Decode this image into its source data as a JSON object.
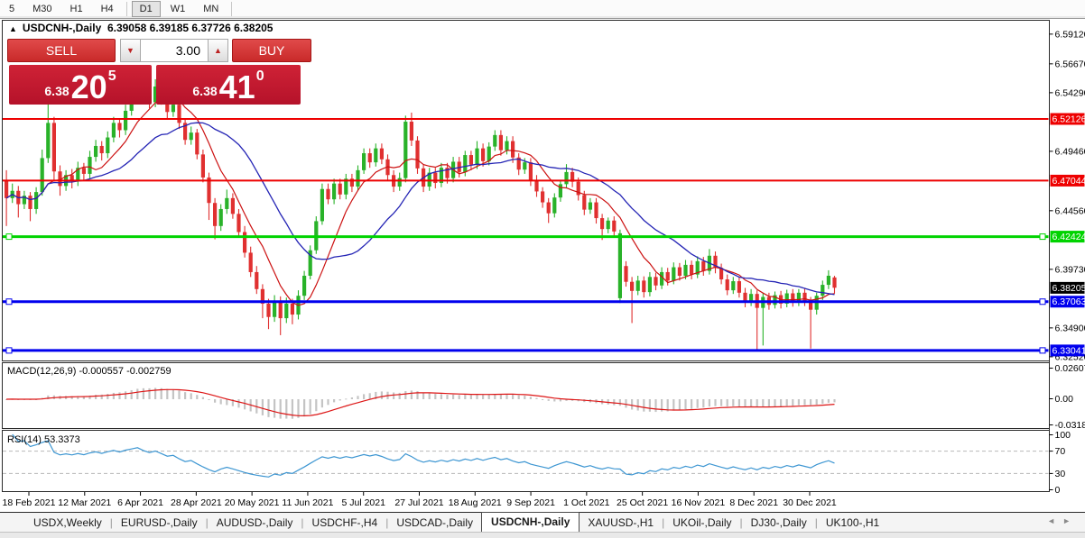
{
  "toolbar": {
    "timeframes": [
      "5",
      "M30",
      "H1",
      "H4",
      "D1",
      "W1",
      "MN"
    ],
    "active": "D1"
  },
  "chart": {
    "title_symbol": "USDCNH-,Daily",
    "title_ohlc": "6.39058 6.39185 6.37726 6.38205"
  },
  "trade_panel": {
    "sell_label": "SELL",
    "buy_label": "BUY",
    "volume": "3.00",
    "sell_quote": {
      "small": "6.38",
      "big": "20",
      "sup": "5"
    },
    "buy_quote": {
      "small": "6.38",
      "big": "41",
      "sup": "0"
    }
  },
  "macd": {
    "label": "MACD(12,26,9) -0.000557 -0.002759",
    "axis": [
      "0.02607",
      "0.00",
      "-0.03187"
    ]
  },
  "rsi": {
    "label": "RSI(14) 53.3373",
    "axis": [
      "100",
      "70",
      "30",
      "0"
    ],
    "levels": [
      70,
      30
    ]
  },
  "tabs": {
    "items": [
      "USDX,Weekly",
      "EURUSD-,Daily",
      "AUDUSD-,Daily",
      "USDCHF-,H4",
      "USDCAD-,Daily",
      "USDCNH-,Daily",
      "XAUUSD-,H1",
      "UKOil-,Daily",
      "DJ30-,Daily",
      "UK100-,H1"
    ],
    "active": "USDCNH-,Daily",
    "scroll_left": "◄",
    "scroll_right": "►"
  },
  "colors": {
    "bull": "#29b229",
    "bear": "#e03030",
    "ma_fast": "#cc1111",
    "ma_slow": "#2525b5",
    "macd_hist": "#c4c4c4",
    "macd_signal": "#dd1616",
    "rsi_line": "#3d96d2",
    "rsi_level": "#b8b8b8",
    "frame": "#2a2a2a",
    "axis_text": "#000000",
    "badge_current": "#000000"
  },
  "chart_data": {
    "type": "candlestick",
    "symbol": "USDCNH-",
    "period": "Daily",
    "y_ticks": [
      "6.59120",
      "6.56670",
      "6.54290",
      "6.49460",
      "6.44560",
      "6.39730",
      "6.34900",
      "6.32520"
    ],
    "x_labels": [
      "18 Feb 2021",
      "12 Mar 2021",
      "6 Apr 2021",
      "28 Apr 2021",
      "20 May 2021",
      "11 Jun 2021",
      "5 Jul 2021",
      "27 Jul 2021",
      "18 Aug 2021",
      "9 Sep 2021",
      "1 Oct 2021",
      "25 Oct 2021",
      "16 Nov 2021",
      "8 Dec 2021",
      "30 Dec 2021"
    ],
    "levels": [
      {
        "price": 6.52126,
        "label": "6.52126",
        "color": "#ee0000",
        "width": 2,
        "handles": false
      },
      {
        "price": 6.47044,
        "label": "6.47044",
        "color": "#ee0000",
        "width": 2,
        "handles": false
      },
      {
        "price": 6.42424,
        "label": "6.42424",
        "color": "#00d300",
        "width": 3,
        "handles": true
      },
      {
        "price": 6.37063,
        "label": "6.37063",
        "color": "#0000ee",
        "width": 3,
        "handles": true
      },
      {
        "price": 6.33041,
        "label": "6.33041",
        "color": "#0000ee",
        "width": 3,
        "handles": true
      }
    ],
    "current_price": {
      "price": 6.38205,
      "label": "6.38205"
    },
    "last_candle_ohlc": {
      "open": 6.39058,
      "high": 6.39185,
      "low": 6.37726,
      "close": 6.38205
    },
    "indicators": {
      "ma_fast_period": 8,
      "ma_slow_period": 20,
      "macd": [
        12,
        26,
        9
      ],
      "rsi": 14
    },
    "macd_axis_values": [
      0.02607,
      0.0,
      -0.03187
    ],
    "rsi_axis_values": [
      100,
      70,
      30,
      0
    ],
    "candles": [
      [
        6.47,
        6.479,
        6.433,
        6.456
      ],
      [
        6.456,
        6.468,
        6.452,
        6.462
      ],
      [
        6.462,
        6.466,
        6.44,
        6.451
      ],
      [
        6.451,
        6.462,
        6.447,
        6.458
      ],
      [
        6.458,
        6.461,
        6.437,
        6.447
      ],
      [
        6.447,
        6.465,
        6.443,
        6.461
      ],
      [
        6.461,
        6.496,
        6.458,
        6.489
      ],
      [
        6.489,
        6.545,
        6.485,
        6.518
      ],
      [
        6.518,
        6.523,
        6.47,
        6.478
      ],
      [
        6.478,
        6.483,
        6.458,
        6.466
      ],
      [
        6.466,
        6.479,
        6.462,
        6.475
      ],
      [
        6.475,
        6.48,
        6.464,
        6.47
      ],
      [
        6.47,
        6.486,
        6.466,
        6.481
      ],
      [
        6.481,
        6.485,
        6.47,
        6.476
      ],
      [
        6.476,
        6.495,
        6.472,
        6.49
      ],
      [
        6.49,
        6.504,
        6.486,
        6.499
      ],
      [
        6.499,
        6.503,
        6.487,
        6.493
      ],
      [
        6.493,
        6.511,
        6.489,
        6.506
      ],
      [
        6.506,
        6.523,
        6.502,
        6.518
      ],
      [
        6.518,
        6.522,
        6.506,
        6.512
      ],
      [
        6.512,
        6.533,
        6.508,
        6.528
      ],
      [
        6.528,
        6.545,
        6.524,
        6.54
      ],
      [
        6.54,
        6.556,
        6.536,
        6.553
      ],
      [
        6.553,
        6.5555,
        6.538,
        6.543
      ],
      [
        6.543,
        6.548,
        6.53,
        6.535
      ],
      [
        6.535,
        6.554,
        6.531,
        6.548
      ],
      [
        6.548,
        6.552,
        6.533,
        6.538
      ],
      [
        6.538,
        6.542,
        6.521,
        6.527
      ],
      [
        6.527,
        6.536,
        6.523,
        6.533
      ],
      [
        6.533,
        6.537,
        6.513,
        6.518
      ],
      [
        6.518,
        6.522,
        6.5,
        6.504
      ],
      [
        6.504,
        6.515,
        6.5,
        6.51
      ],
      [
        6.51,
        6.513,
        6.488,
        6.492
      ],
      [
        6.492,
        6.496,
        6.469,
        6.473
      ],
      [
        6.473,
        6.477,
        6.438,
        6.452
      ],
      [
        6.452,
        6.456,
        6.422,
        6.433
      ],
      [
        6.433,
        6.451,
        6.429,
        6.447
      ],
      [
        6.447,
        6.463,
        6.443,
        6.456
      ],
      [
        6.456,
        6.46,
        6.439,
        6.443
      ],
      [
        6.443,
        6.447,
        6.424,
        6.428
      ],
      [
        6.428,
        6.433,
        6.407,
        6.411
      ],
      [
        6.411,
        6.416,
        6.391,
        6.395
      ],
      [
        6.395,
        6.4,
        6.377,
        6.381
      ],
      [
        6.381,
        6.385,
        6.357,
        6.369
      ],
      [
        6.369,
        6.373,
        6.348,
        6.358
      ],
      [
        6.358,
        6.376,
        6.354,
        6.371
      ],
      [
        6.371,
        6.375,
        6.343,
        6.357
      ],
      [
        6.357,
        6.374,
        6.353,
        6.369
      ],
      [
        6.369,
        6.373,
        6.352,
        6.36
      ],
      [
        6.36,
        6.38,
        6.356,
        6.3755
      ],
      [
        6.3755,
        6.396,
        6.372,
        6.392
      ],
      [
        6.392,
        6.417,
        6.389,
        6.413
      ],
      [
        6.413,
        6.441,
        6.41,
        6.437
      ],
      [
        6.437,
        6.468,
        6.434,
        6.4635
      ],
      [
        6.4635,
        6.468,
        6.451,
        6.455
      ],
      [
        6.455,
        6.472,
        6.451,
        6.468
      ],
      [
        6.468,
        6.472,
        6.455,
        6.459
      ],
      [
        6.459,
        6.476,
        6.455,
        6.472
      ],
      [
        6.472,
        6.476,
        6.461,
        6.4655
      ],
      [
        6.4655,
        6.483,
        6.462,
        6.479
      ],
      [
        6.479,
        6.497,
        6.476,
        6.493
      ],
      [
        6.493,
        6.497,
        6.481,
        6.4855
      ],
      [
        6.4855,
        6.501,
        6.482,
        6.497
      ],
      [
        6.497,
        6.501,
        6.484,
        6.488
      ],
      [
        6.488,
        6.492,
        6.471,
        6.475
      ],
      [
        6.475,
        6.479,
        6.461,
        6.4655
      ],
      [
        6.4655,
        6.477,
        6.462,
        6.4725
      ],
      [
        6.4725,
        6.524,
        6.469,
        6.519
      ],
      [
        6.519,
        6.5265,
        6.499,
        6.5035
      ],
      [
        6.5035,
        6.507,
        6.476,
        6.4805
      ],
      [
        6.4805,
        6.484,
        6.461,
        6.4655
      ],
      [
        6.4655,
        6.481,
        6.462,
        6.477
      ],
      [
        6.477,
        6.481,
        6.464,
        6.4685
      ],
      [
        6.4685,
        6.485,
        6.465,
        6.481
      ],
      [
        6.481,
        6.485,
        6.468,
        6.4725
      ],
      [
        6.4725,
        6.49,
        6.469,
        6.486
      ],
      [
        6.486,
        6.49,
        6.473,
        6.4775
      ],
      [
        6.4775,
        6.495,
        6.474,
        6.4915
      ],
      [
        6.4915,
        6.495,
        6.479,
        6.4835
      ],
      [
        6.4835,
        6.503,
        6.48,
        6.497
      ],
      [
        6.497,
        6.501,
        6.482,
        6.4865
      ],
      [
        6.4865,
        6.502,
        6.483,
        6.4985
      ],
      [
        6.4985,
        6.512,
        6.495,
        6.508
      ],
      [
        6.508,
        6.512,
        6.491,
        6.4955
      ],
      [
        6.4955,
        6.507,
        6.492,
        6.503
      ],
      [
        6.503,
        6.507,
        6.485,
        6.4895
      ],
      [
        6.4895,
        6.493,
        6.475,
        6.4795
      ],
      [
        6.4795,
        6.489,
        6.476,
        6.4855
      ],
      [
        6.4855,
        6.489,
        6.466,
        6.471
      ],
      [
        6.471,
        6.475,
        6.457,
        6.4615
      ],
      [
        6.4615,
        6.465,
        6.448,
        6.4525
      ],
      [
        6.4525,
        6.456,
        6.4355,
        6.4435
      ],
      [
        6.4435,
        6.46,
        6.44,
        6.4565
      ],
      [
        6.4565,
        6.471,
        6.453,
        6.4675
      ],
      [
        6.4675,
        6.484,
        6.464,
        6.4775
      ],
      [
        6.4775,
        6.481,
        6.465,
        6.4695
      ],
      [
        6.4695,
        6.473,
        6.454,
        6.4585
      ],
      [
        6.4585,
        6.462,
        6.442,
        6.4465
      ],
      [
        6.4465,
        6.456,
        6.443,
        6.4525
      ],
      [
        6.4525,
        6.456,
        6.435,
        6.4395
      ],
      [
        6.4395,
        6.443,
        6.4215,
        6.4305
      ],
      [
        6.4305,
        6.44,
        6.427,
        6.4375
      ],
      [
        6.4375,
        6.441,
        6.424,
        6.4285
      ],
      [
        6.3735,
        6.43,
        6.3695,
        6.427
      ],
      [
        6.4,
        6.404,
        6.383,
        6.387
      ],
      [
        6.387,
        6.391,
        6.353,
        6.3795
      ],
      [
        6.3795,
        6.392,
        6.376,
        6.388
      ],
      [
        6.388,
        6.3915,
        6.374,
        6.3785
      ],
      [
        6.3785,
        6.395,
        6.375,
        6.391
      ],
      [
        6.391,
        6.3945,
        6.38,
        6.384
      ],
      [
        6.384,
        6.399,
        6.381,
        6.395
      ],
      [
        6.395,
        6.3985,
        6.384,
        6.388
      ],
      [
        6.388,
        6.403,
        6.385,
        6.399
      ],
      [
        6.399,
        6.4025,
        6.388,
        6.392
      ],
      [
        6.392,
        6.405,
        6.389,
        6.401
      ],
      [
        6.401,
        6.4045,
        6.389,
        6.393
      ],
      [
        6.393,
        6.408,
        6.39,
        6.404
      ],
      [
        6.404,
        6.4075,
        6.392,
        6.396
      ],
      [
        6.396,
        6.414,
        6.393,
        6.4085
      ],
      [
        6.4085,
        6.412,
        6.394,
        6.3985
      ],
      [
        6.3985,
        6.402,
        6.385,
        6.389
      ],
      [
        6.389,
        6.393,
        6.376,
        6.38
      ],
      [
        6.38,
        6.391,
        6.377,
        6.3875
      ],
      [
        6.3875,
        6.391,
        6.374,
        6.378
      ],
      [
        6.378,
        6.382,
        6.366,
        6.37
      ],
      [
        6.37,
        6.381,
        6.367,
        6.377
      ],
      [
        6.377,
        6.38,
        6.331,
        6.3655
      ],
      [
        6.3655,
        6.378,
        6.3345,
        6.3745
      ],
      [
        6.3745,
        6.378,
        6.364,
        6.368
      ],
      [
        6.368,
        6.379,
        6.365,
        6.376
      ],
      [
        6.376,
        6.3795,
        6.365,
        6.369
      ],
      [
        6.369,
        6.3805,
        6.366,
        6.3775
      ],
      [
        6.3775,
        6.381,
        6.3665,
        6.3705
      ],
      [
        6.3705,
        6.381,
        6.367,
        6.378
      ],
      [
        6.378,
        6.3815,
        6.367,
        6.371
      ],
      [
        6.371,
        6.3745,
        6.332,
        6.364
      ],
      [
        6.364,
        6.378,
        6.36,
        6.3755
      ],
      [
        6.3755,
        6.388,
        6.372,
        6.3845
      ],
      [
        6.3845,
        6.3965,
        6.381,
        6.392
      ],
      [
        6.3906,
        6.3919,
        6.3773,
        6.3821
      ]
    ]
  }
}
